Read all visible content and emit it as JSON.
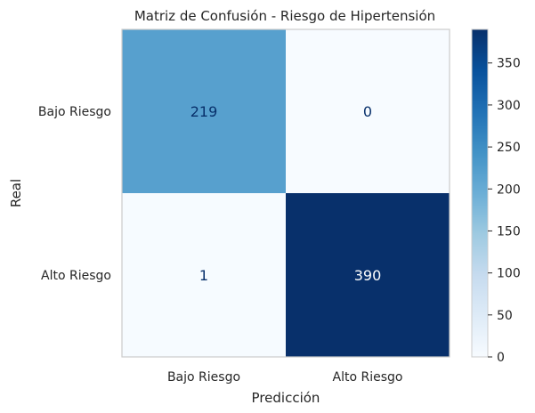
{
  "chart_data": {
    "type": "heatmap",
    "title": "Matriz de Confusión - Riesgo de Hipertensión",
    "xlabel": "Predicción",
    "ylabel": "Real",
    "x_categories": [
      "Bajo Riesgo",
      "Alto Riesgo"
    ],
    "y_categories": [
      "Bajo Riesgo",
      "Alto Riesgo"
    ],
    "values": [
      [
        219,
        0
      ],
      [
        1,
        390
      ]
    ],
    "colormap": "Blues",
    "vmin": 0,
    "vmax": 390,
    "colorbar_ticks": [
      0,
      50,
      100,
      150,
      200,
      250,
      300,
      350
    ],
    "grid": false
  }
}
